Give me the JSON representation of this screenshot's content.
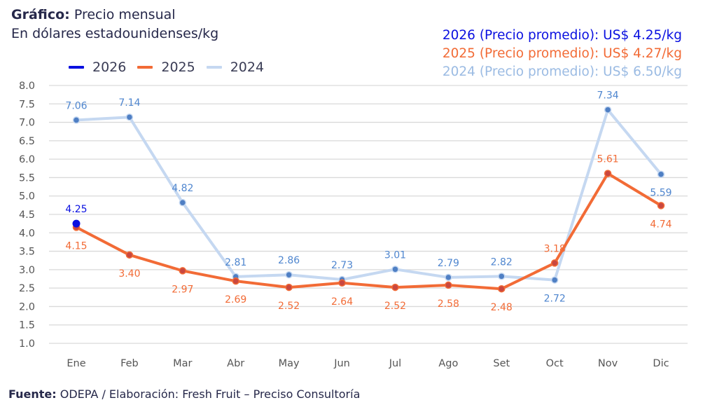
{
  "header": {
    "title_bold": "Gráfico:",
    "title_rest": " Precio mensual",
    "subtitle": "En dólares estadounidenses/kg"
  },
  "averages": [
    {
      "text": "2026 (Precio promedio): US$ 4.25/kg",
      "color": "#0a10e0"
    },
    {
      "text": "2025 (Precio promedio): US$ 4.27/kg",
      "color": "#f26b36"
    },
    {
      "text": "2024 (Precio promedio): US$ 6.50/kg",
      "color": "#9bbbe3"
    }
  ],
  "footer": {
    "source_bold": "Fuente:",
    "source_rest": " ODEPA / Elaboración: Fresh Fruit – Preciso Consultoría"
  },
  "chart_data": {
    "type": "line",
    "title": "Precio mensual",
    "subtitle": "En dólares estadounidenses/kg",
    "xlabel": "",
    "ylabel": "",
    "categories": [
      "Ene",
      "Feb",
      "Mar",
      "Abr",
      "May",
      "Jun",
      "Jul",
      "Ago",
      "Set",
      "Oct",
      "Nov",
      "Dic"
    ],
    "ylim": [
      1.0,
      8.0
    ],
    "yticks": [
      "1.0",
      "1.5",
      "2.0",
      "2.5",
      "3.0",
      "3.5",
      "4.0",
      "4.5",
      "5.0",
      "5.5",
      "6.0",
      "6.5",
      "7.0",
      "7.5",
      "8.0"
    ],
    "grid": true,
    "legend_position": "top-left",
    "series": [
      {
        "name": "2024",
        "line_color": "#c5d8f1",
        "marker_color": "#4f7fc4",
        "label_color": "#4f86cf",
        "values": [
          7.06,
          7.14,
          4.82,
          2.81,
          2.86,
          2.73,
          3.01,
          2.79,
          2.82,
          2.72,
          7.34,
          5.59
        ],
        "label_pos": [
          "above",
          "above",
          "above",
          "above",
          "above",
          "above",
          "above",
          "above",
          "above",
          "below",
          "above",
          "below"
        ]
      },
      {
        "name": "2025",
        "line_color": "#f26b36",
        "marker_color": "#c9473f",
        "label_color": "#f26b36",
        "values": [
          4.15,
          3.4,
          2.97,
          2.69,
          2.52,
          2.64,
          2.52,
          2.58,
          2.48,
          3.18,
          5.61,
          4.74
        ],
        "label_pos": [
          "below",
          "below",
          "below",
          "below",
          "below",
          "below",
          "below",
          "below",
          "below",
          "above",
          "above",
          "below"
        ]
      },
      {
        "name": "2026",
        "line_color": "#0a10e0",
        "marker_color": "#0a10e0",
        "label_color": "#0a10e0",
        "values": [
          4.25,
          null,
          null,
          null,
          null,
          null,
          null,
          null,
          null,
          null,
          null,
          null
        ],
        "label_pos": [
          "above"
        ]
      }
    ],
    "legend_order": [
      "2026",
      "2025",
      "2024"
    ]
  }
}
